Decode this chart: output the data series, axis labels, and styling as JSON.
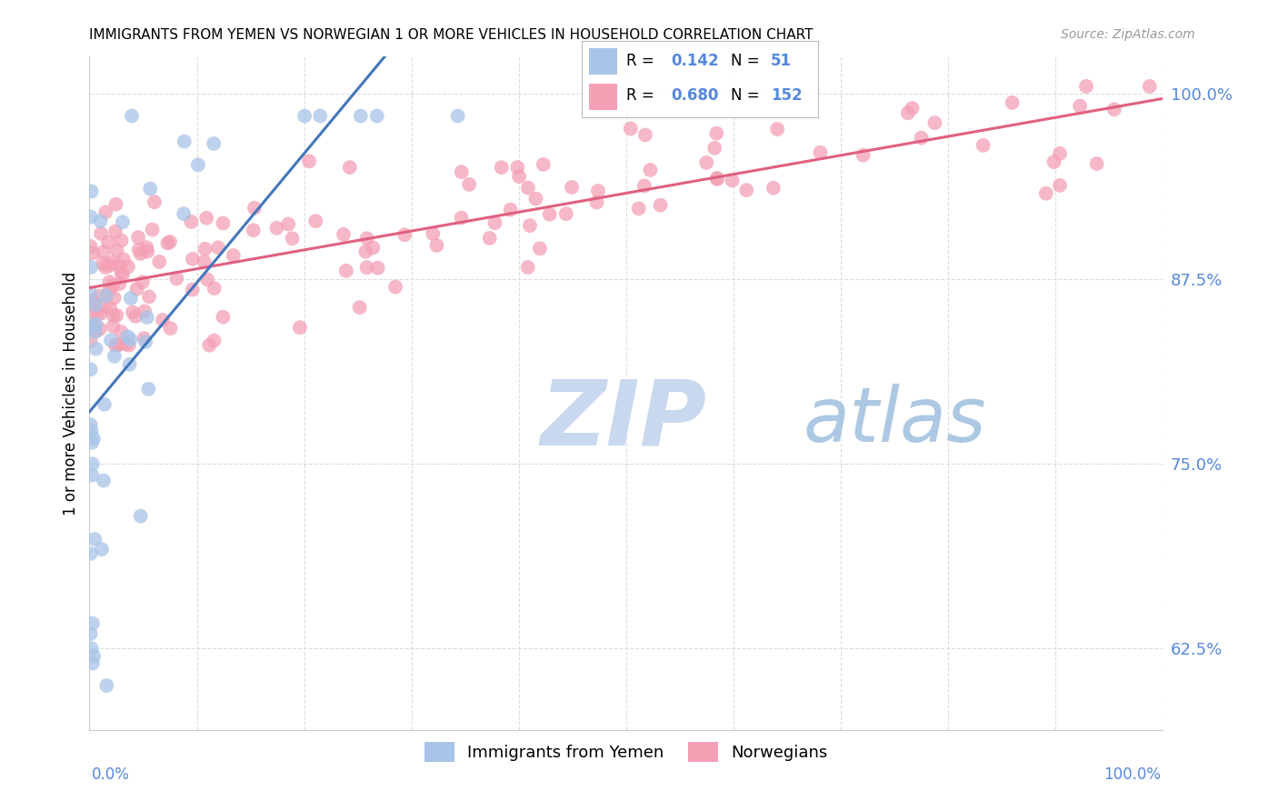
{
  "title": "IMMIGRANTS FROM YEMEN VS NORWEGIAN 1 OR MORE VEHICLES IN HOUSEHOLD CORRELATION CHART",
  "source": "Source: ZipAtlas.com",
  "ylabel": "1 or more Vehicles in Household",
  "ytick_labels": [
    "62.5%",
    "75.0%",
    "87.5%",
    "100.0%"
  ],
  "ytick_vals": [
    0.625,
    0.75,
    0.875,
    1.0
  ],
  "xmin": 0.0,
  "xmax": 1.0,
  "ymin": 0.57,
  "ymax": 1.025,
  "color_yemen": "#a8c4e8",
  "color_norway": "#f4a0b5",
  "trendline_yemen_color": "#4477bb",
  "trendline_norway_color": "#e06080",
  "background_color": "#ffffff",
  "watermark_zip_color": "#c8d8ee",
  "watermark_atlas_color": "#99bbdd",
  "tick_label_color": "#5588dd",
  "source_color": "#999999",
  "legend_r1": "R =  0.142",
  "legend_n1": "N =  51",
  "legend_r2": "R =  0.680",
  "legend_n2": "N = 152"
}
